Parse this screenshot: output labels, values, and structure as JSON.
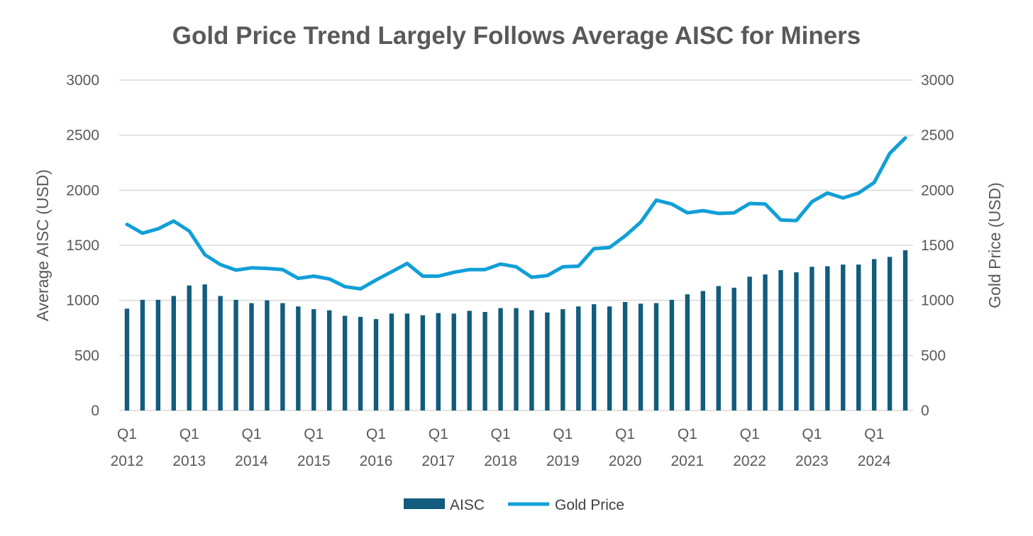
{
  "chart_data": {
    "type": "bar+line",
    "title": "Gold Price Trend Largely Follows Average AISC for Miners",
    "ylabel_left": "Average AISC (USD)",
    "ylabel_right": "Gold Price (USD)",
    "ylim": [
      0,
      3000
    ],
    "yticks": [
      "0",
      "500",
      "1000",
      "1500",
      "2000",
      "2500",
      "3000"
    ],
    "grid": true,
    "legend_position": "bottom",
    "x_tick_labels": [
      {
        "q": "Q1",
        "year": "2012"
      },
      {
        "q": "Q1",
        "year": "2013"
      },
      {
        "q": "Q1",
        "year": "2014"
      },
      {
        "q": "Q1",
        "year": "2015"
      },
      {
        "q": "Q1",
        "year": "2016"
      },
      {
        "q": "Q1",
        "year": "2017"
      },
      {
        "q": "Q1",
        "year": "2018"
      },
      {
        "q": "Q1",
        "year": "2019"
      },
      {
        "q": "Q1",
        "year": "2020"
      },
      {
        "q": "Q1",
        "year": "2021"
      },
      {
        "q": "Q1",
        "year": "2022"
      },
      {
        "q": "Q1",
        "year": "2023"
      },
      {
        "q": "Q1",
        "year": "2024"
      }
    ],
    "series": [
      {
        "name": "AISC",
        "kind": "bar",
        "color": "#125C7D",
        "values": [
          925,
          1005,
          1005,
          1040,
          1135,
          1145,
          1040,
          1005,
          975,
          1000,
          975,
          945,
          920,
          910,
          860,
          850,
          830,
          880,
          880,
          865,
          885,
          880,
          905,
          895,
          930,
          930,
          910,
          890,
          920,
          945,
          965,
          945,
          985,
          970,
          975,
          1005,
          1055,
          1085,
          1130,
          1115,
          1215,
          1235,
          1275,
          1255,
          1305,
          1310,
          1325,
          1325,
          1375,
          1395,
          1455
        ]
      },
      {
        "name": "Gold Price",
        "kind": "line",
        "color": "#119FD7",
        "values": [
          1690,
          1610,
          1650,
          1720,
          1630,
          1415,
          1325,
          1275,
          1295,
          1290,
          1280,
          1200,
          1220,
          1195,
          1125,
          1105,
          1185,
          1260,
          1335,
          1220,
          1220,
          1255,
          1280,
          1280,
          1330,
          1305,
          1210,
          1225,
          1305,
          1310,
          1470,
          1480,
          1585,
          1710,
          1910,
          1875,
          1795,
          1815,
          1790,
          1795,
          1880,
          1875,
          1730,
          1725,
          1895,
          1975,
          1930,
          1975,
          2070,
          2335,
          2475
        ]
      }
    ]
  }
}
